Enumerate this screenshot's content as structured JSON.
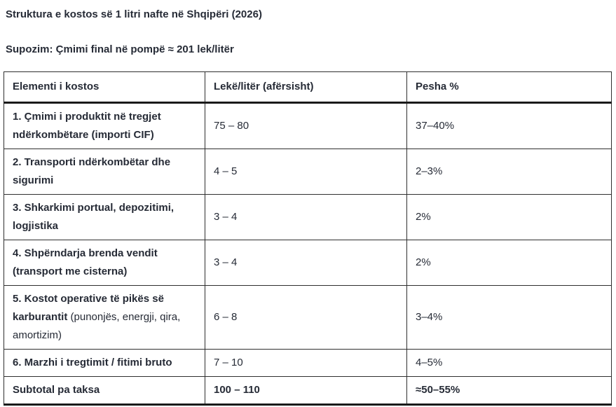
{
  "page": {
    "title": "Struktura e kostos së 1 litri nafte në Shqipëri (2026)",
    "subtitle": "Supozim: Çmimi final në pompë ≈ 201 lek/litër"
  },
  "table": {
    "headers": [
      "Elementi i kostos",
      "Lekë/litër (afërsisht)",
      "Pesha %"
    ],
    "rows": [
      {
        "element_bold": "1. Çmimi i produktit në tregjet ndërkombëtare (importi CIF)",
        "element_normal": "",
        "value": "75 – 80",
        "share": "37–40%"
      },
      {
        "element_bold": "2. Transporti ndërkombëtar dhe sigurimi",
        "element_normal": "",
        "value": "4 – 5",
        "share": "2–3%"
      },
      {
        "element_bold": "3. Shkarkimi portual, depozitimi, logjistika",
        "element_normal": "",
        "value": "3 – 4",
        "share": "2%"
      },
      {
        "element_bold": "4. Shpërndarja brenda vendit (transport me cisterna)",
        "element_normal": "",
        "value": "3 – 4",
        "share": "2%"
      },
      {
        "element_bold": "5. Kostot operative të pikës së karburantit",
        "element_normal": " (punonjës, energji, qira, amortizim)",
        "value": "6 – 8",
        "share": "3–4%"
      },
      {
        "element_bold": "6. Marzhi i tregtimit / fitimi bruto",
        "element_normal": "",
        "value": "7 – 10",
        "share": "4–5%"
      }
    ],
    "subtotal": {
      "label": "Subtotal pa taksa",
      "value": "100 – 110",
      "share": "≈50–55%"
    }
  },
  "colors": {
    "text": "#262b36",
    "border_thin": "#2f2f2f",
    "border_thick": "#1a1a1a",
    "background": "#ffffff"
  }
}
